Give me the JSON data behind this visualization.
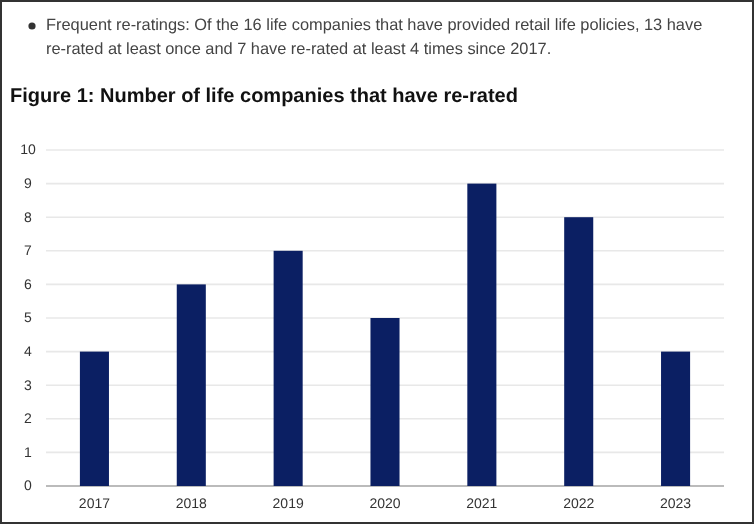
{
  "chart_data": {
    "type": "bar",
    "title": "Figure 1: Number of life companies that have re-rated",
    "annotations": [
      "Frequent re-ratings: Of the 16 life companies that have provided retail life policies, 13 have re-rated at least once and 7 have re-rated at least 4   times since 2017."
    ],
    "categories": [
      "2017",
      "2018",
      "2019",
      "2020",
      "2021",
      "2022",
      "2023"
    ],
    "values": [
      4,
      6,
      7,
      5,
      9,
      8,
      4
    ],
    "color": "#0b1f63",
    "ylim": [
      0,
      10
    ],
    "yticks": [
      0,
      1,
      2,
      3,
      4,
      5,
      6,
      7,
      8,
      9,
      10
    ],
    "grid": "y"
  }
}
